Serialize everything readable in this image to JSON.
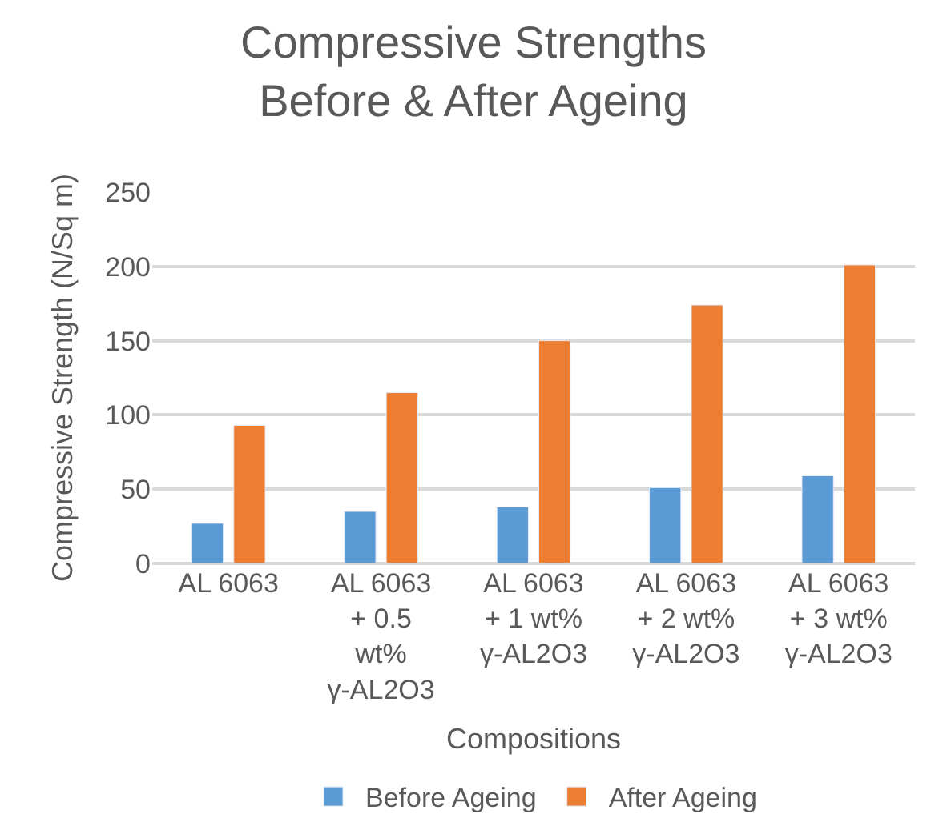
{
  "chart_data": {
    "type": "bar",
    "title": "Compressive Strengths Before & After Ageing",
    "xlabel": "Compositions",
    "ylabel": "Compressive Strength (N/Sq m)",
    "categories": [
      "AL 6063",
      "AL 6063 + 0.5 wt% γ-AL2O3",
      "AL 6063 + 1 wt% γ-AL2O3",
      "AL 6063 + 2 wt% γ-AL2O3",
      "AL 6063 + 3 wt% γ-AL2O3"
    ],
    "series": [
      {
        "name": "Before Ageing",
        "color": "#5b9bd5",
        "values": [
          27,
          35,
          38,
          51,
          59
        ]
      },
      {
        "name": "After Ageing",
        "color": "#ed7d31",
        "values": [
          93,
          115,
          150,
          174,
          201
        ]
      }
    ],
    "ylim": [
      0,
      250
    ],
    "yticks": [
      0,
      50,
      100,
      150,
      200,
      250
    ],
    "grid": "y",
    "legend": "bottom"
  }
}
